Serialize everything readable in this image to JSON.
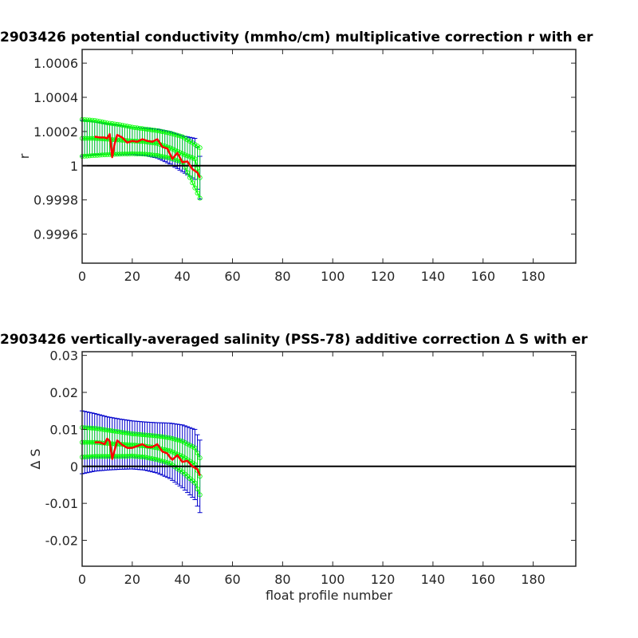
{
  "chart_data": [
    {
      "type": "line",
      "title": "2903426 potential conductivity (mmho/cm) multiplicative correction r with er",
      "xlabel": "",
      "ylabel": "r",
      "xlim": [
        0,
        197
      ],
      "ylim": [
        0.99943,
        1.00068
      ],
      "xticks": [
        0,
        20,
        40,
        60,
        80,
        100,
        120,
        140,
        160,
        180
      ],
      "xtick_labels": [
        "0",
        "20",
        "40",
        "60",
        "80",
        "100",
        "120",
        "140",
        "160",
        "180"
      ],
      "yticks": [
        0.9996,
        0.9998,
        1.0,
        1.0002,
        1.0004,
        1.0006
      ],
      "ytick_labels": [
        "0.9996",
        "0.9998",
        "1",
        "1.0002",
        "1.0004",
        "1.0006"
      ],
      "reference_line": 1.0,
      "series": [
        {
          "role": "fit",
          "color": "#00ff00",
          "x": [
            0,
            5,
            10,
            15,
            20,
            25,
            30,
            35,
            40,
            45,
            47
          ],
          "y": [
            1.00016,
            1.00016,
            1.000155,
            1.00015,
            1.000145,
            1.00014,
            1.00013,
            1.000105,
            1.00007,
            1.00004,
            0.99993
          ],
          "err": [
            0.000105,
            9.5e-05,
            9e-05,
            8.5e-05,
            8e-05,
            8e-05,
            8.5e-05,
            9.5e-05,
            0.000105,
            0.00012,
            0.000125
          ]
        },
        {
          "role": "fit-upper",
          "color": "#00ff00",
          "x": [
            0,
            5,
            10,
            15,
            20,
            25,
            30,
            35,
            40,
            45,
            47
          ],
          "y": [
            1.00027,
            1.000265,
            1.00025,
            1.00024,
            1.000225,
            1.000215,
            1.000205,
            1.00019,
            1.00017,
            1.000125,
            1.000105
          ]
        },
        {
          "role": "fit-lower",
          "color": "#00ff00",
          "x": [
            0,
            5,
            10,
            15,
            20,
            25,
            30,
            35,
            40,
            45,
            47
          ],
          "y": [
            1.000055,
            1.00006,
            1.000065,
            1.000068,
            1.00007,
            1.000068,
            1.00006,
            1.000045,
            1.00002,
            0.99987,
            0.99981
          ]
        },
        {
          "role": "profile-fit",
          "color": "#ff0000",
          "x": [
            5,
            7,
            9,
            10,
            11,
            12,
            13,
            14,
            16,
            18,
            20,
            22,
            24,
            26,
            28,
            30,
            32,
            34,
            35,
            36,
            38,
            40,
            42,
            44,
            46,
            47
          ],
          "y": [
            1.00017,
            1.000165,
            1.000165,
            1.00016,
            1.000185,
            1.00005,
            1.00013,
            1.00018,
            1.000165,
            1.000135,
            1.000145,
            1.00014,
            1.000155,
            1.000145,
            1.00014,
            1.000155,
            1.00011,
            1.0001,
            1.00007,
            1.00004,
            1.000075,
            1.00002,
            1.000025,
            0.99998,
            0.99996,
            0.99993
          ]
        }
      ]
    },
    {
      "type": "line",
      "title": "2903426 vertically-averaged salinity (PSS-78) additive correction ∆ S with er",
      "xlabel": "float profile number",
      "ylabel": "∆ S",
      "xlim": [
        0,
        197
      ],
      "ylim": [
        -0.027,
        0.031
      ],
      "xticks": [
        0,
        20,
        40,
        60,
        80,
        100,
        120,
        140,
        160,
        180
      ],
      "xtick_labels": [
        "0",
        "20",
        "40",
        "60",
        "80",
        "100",
        "120",
        "140",
        "160",
        "180"
      ],
      "yticks": [
        -0.02,
        -0.01,
        0,
        0.01,
        0.02,
        0.03
      ],
      "ytick_labels": [
        "-0.02",
        "-0.01",
        "0",
        "0.01",
        "0.02",
        "0.03"
      ],
      "reference_line": 0,
      "series": [
        {
          "role": "fit",
          "color": "#00ff00",
          "x": [
            0,
            5,
            10,
            15,
            20,
            25,
            30,
            35,
            40,
            45,
            47
          ],
          "y": [
            0.0065,
            0.0065,
            0.0062,
            0.006,
            0.0058,
            0.0055,
            0.005,
            0.0042,
            0.0027,
            0.0005,
            -0.0027
          ],
          "err": [
            0.0085,
            0.0078,
            0.0072,
            0.0068,
            0.0065,
            0.0065,
            0.0068,
            0.0075,
            0.0085,
            0.0095,
            0.0098
          ]
        },
        {
          "role": "fit-upper",
          "color": "#00ff00",
          "x": [
            0,
            5,
            10,
            15,
            20,
            25,
            30,
            35,
            40,
            45,
            47
          ],
          "y": [
            0.0105,
            0.0103,
            0.0098,
            0.0093,
            0.0088,
            0.0085,
            0.0082,
            0.0077,
            0.0068,
            0.005,
            0.0023
          ]
        },
        {
          "role": "fit-lower",
          "color": "#00ff00",
          "x": [
            0,
            5,
            10,
            15,
            20,
            25,
            30,
            35,
            40,
            45,
            47
          ],
          "y": [
            0.0025,
            0.0027,
            0.0027,
            0.0027,
            0.0028,
            0.0025,
            0.0018,
            0.0008,
            -0.0015,
            -0.0045,
            -0.0077
          ]
        },
        {
          "role": "profile-fit",
          "color": "#ff0000",
          "x": [
            5,
            7,
            9,
            10,
            11,
            12,
            13,
            14,
            16,
            18,
            20,
            22,
            24,
            26,
            28,
            30,
            32,
            34,
            35,
            36,
            38,
            40,
            42,
            44,
            46,
            47
          ],
          "y": [
            0.0065,
            0.0065,
            0.006,
            0.0075,
            0.0068,
            0.002,
            0.0045,
            0.007,
            0.0058,
            0.005,
            0.005,
            0.0055,
            0.006,
            0.0052,
            0.0052,
            0.006,
            0.004,
            0.0035,
            0.0025,
            0.0018,
            0.003,
            0.0012,
            0.0015,
            0.0,
            -0.0008,
            -0.0025
          ]
        }
      ]
    }
  ],
  "colors": {
    "errorbar": "#0000cc",
    "fit": "#00ff00",
    "profile": "#ff0000",
    "reference": "#000000",
    "axes": "#262626"
  }
}
